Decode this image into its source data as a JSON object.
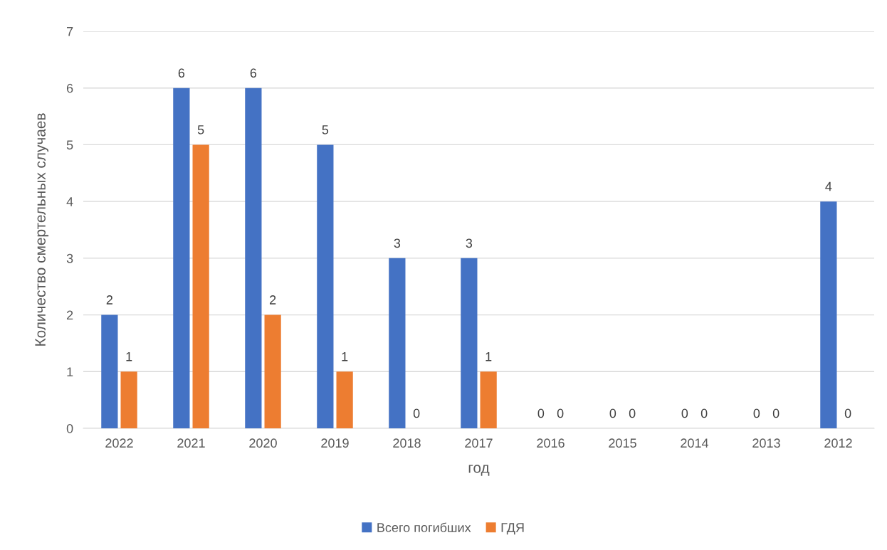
{
  "chart_data": {
    "type": "bar",
    "xlabel": "год",
    "ylabel": "Количество смертельных случаев",
    "categories": [
      "2022",
      "2021",
      "2020",
      "2019",
      "2018",
      "2017",
      "2016",
      "2015",
      "2014",
      "2013",
      "2012"
    ],
    "series": [
      {
        "name": "Всего погибших",
        "color": "#4472c4",
        "values": [
          2,
          6,
          6,
          5,
          3,
          3,
          0,
          0,
          0,
          0,
          4
        ]
      },
      {
        "name": "ГДЯ",
        "color": "#ed7d31",
        "values": [
          1,
          5,
          2,
          1,
          0,
          1,
          0,
          0,
          0,
          0,
          0
        ]
      }
    ],
    "ylim": [
      0,
      7
    ],
    "yticks": [
      0,
      1,
      2,
      3,
      4,
      5,
      6,
      7
    ],
    "grid": "y",
    "legend": "bottom",
    "data_labels": true
  }
}
